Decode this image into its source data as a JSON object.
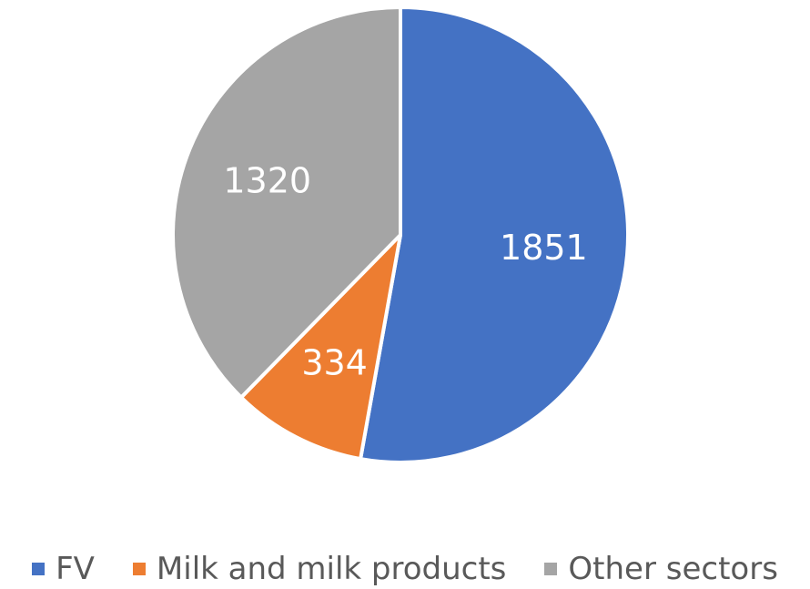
{
  "chart_data": {
    "type": "pie",
    "title": "",
    "slices": [
      {
        "label": "FV",
        "value": 1851,
        "color": "#4472C4"
      },
      {
        "label": "Milk and milk products",
        "value": 334,
        "color": "#ED7D31"
      },
      {
        "label": "Other sectors",
        "value": 1320,
        "color": "#A5A5A5"
      }
    ],
    "start_angle_deg": 0,
    "direction": "clockwise",
    "data_labels": true,
    "legend": {
      "position": "bottom"
    }
  },
  "legend": {
    "items": [
      {
        "label": "FV",
        "color": "#4472C4"
      },
      {
        "label": "Milk and milk products",
        "color": "#ED7D31"
      },
      {
        "label": "Other sectors",
        "color": "#A5A5A5"
      }
    ]
  }
}
